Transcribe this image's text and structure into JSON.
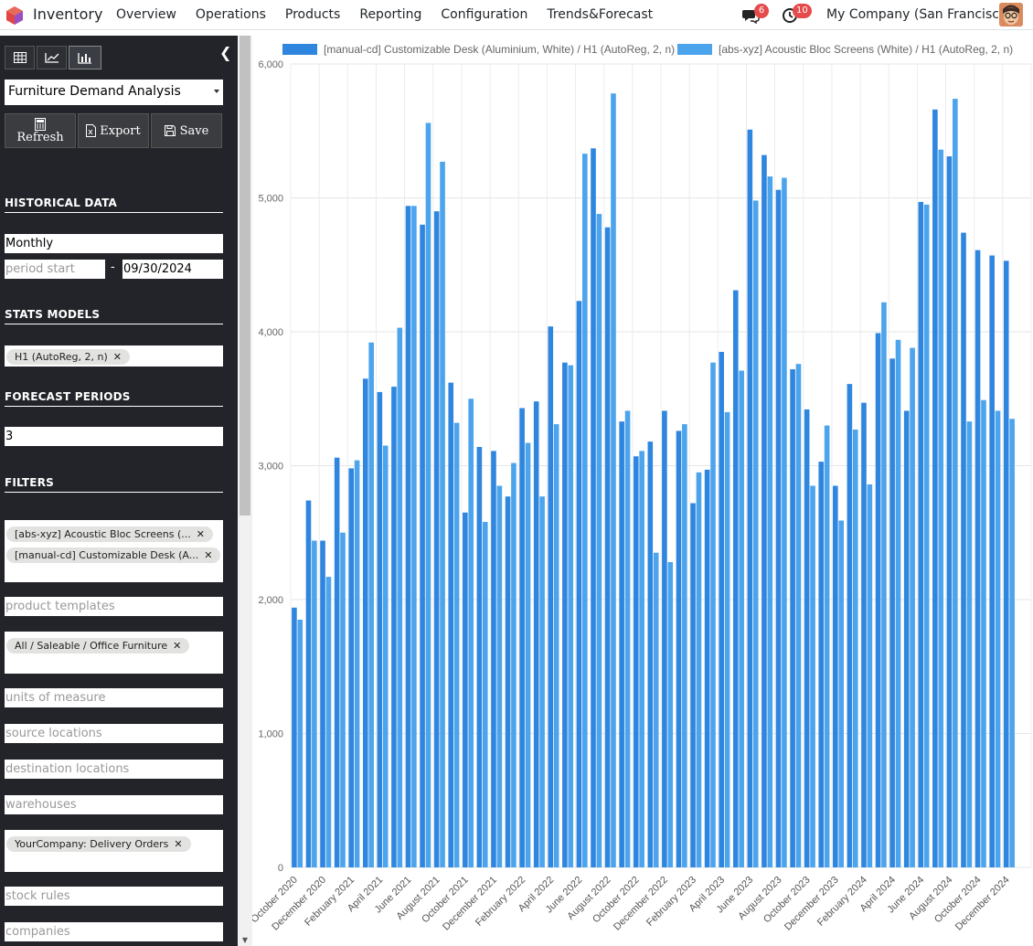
{
  "app": {
    "name": "Inventory"
  },
  "menu": [
    "Overview",
    "Operations",
    "Products",
    "Reporting",
    "Configuration",
    "Trends&Forecast"
  ],
  "systray": {
    "messages_count": "6",
    "activities_count": "10",
    "company": "My Company (San Francisco)"
  },
  "sidebar": {
    "report_select": "Furniture Demand Analysis",
    "actions": {
      "refresh": "Refresh",
      "export": "Export",
      "save": "Save"
    },
    "historical_title": "HISTORICAL DATA",
    "period": "Monthly",
    "period_start_placeholder": "period start",
    "period_separator": "-",
    "period_end": "09/30/2024",
    "stats_title": "STATS MODELS",
    "stats_tag": "H1 (AutoReg, 2, n)",
    "forecast_title": "FORECAST PERIODS",
    "forecast_value": "3",
    "filters_title": "FILTERS",
    "product_tags": [
      "[abs-xyz] Acoustic Bloc Screens (...",
      "[manual-cd] Customizable Desk (A..."
    ],
    "product_templates_placeholder": "product templates",
    "category_tag": "All / Saleable / Office Furniture",
    "uom_placeholder": "units of measure",
    "source_placeholder": "source locations",
    "destination_placeholder": "destination locations",
    "warehouses_placeholder": "warehouses",
    "picking_tag": "YourCompany: Delivery Orders",
    "stock_rules_placeholder": "stock rules",
    "companies_placeholder": "companies"
  },
  "chart_data": {
    "type": "bar",
    "legend_position": "top",
    "grid": true,
    "ylim": [
      0,
      6000
    ],
    "y_ticks": [
      "0",
      "1,000",
      "2,000",
      "3,000",
      "4,000",
      "5,000",
      "6,000"
    ],
    "categories": [
      "October 2020",
      "November 2020",
      "December 2020",
      "January 2021",
      "February 2021",
      "March 2021",
      "April 2021",
      "May 2021",
      "June 2021",
      "July 2021",
      "August 2021",
      "September 2021",
      "October 2021",
      "November 2021",
      "December 2021",
      "January 2022",
      "February 2022",
      "March 2022",
      "April 2022",
      "May 2022",
      "June 2022",
      "July 2022",
      "August 2022",
      "September 2022",
      "October 2022",
      "November 2022",
      "December 2022",
      "January 2023",
      "February 2023",
      "March 2023",
      "April 2023",
      "May 2023",
      "June 2023",
      "July 2023",
      "August 2023",
      "September 2023",
      "October 2023",
      "November 2023",
      "December 2023",
      "January 2024",
      "February 2024",
      "March 2024",
      "April 2024",
      "May 2024",
      "June 2024",
      "July 2024",
      "August 2024",
      "September 2024",
      "October 2024",
      "November 2024",
      "December 2024",
      "January 2025"
    ],
    "x_tick_labels": [
      "October 2020",
      "December 2020",
      "February 2021",
      "April 2021",
      "June 2021",
      "August 2021",
      "October 2021",
      "December 2021",
      "February 2022",
      "April 2022",
      "June 2022",
      "August 2022",
      "October 2022",
      "December 2022",
      "February 2023",
      "April 2023",
      "June 2023",
      "August 2023",
      "October 2023",
      "December 2023",
      "February 2024",
      "April 2024",
      "June 2024",
      "August 2024",
      "October 2024",
      "December 2024"
    ],
    "series": [
      {
        "name": "[manual-cd] Customizable Desk (Aluminium, White) / H1 (AutoReg, 2, n)",
        "color": "#2f86df",
        "values": [
          1940,
          2740,
          2440,
          3060,
          2980,
          3650,
          3550,
          3590,
          4940,
          4800,
          4900,
          3620,
          2650,
          3140,
          3110,
          2770,
          3430,
          3480,
          4040,
          3770,
          4230,
          5370,
          4780,
          3330,
          3070,
          3180,
          3410,
          3260,
          2720,
          2970,
          3850,
          4310,
          5510,
          5320,
          5060,
          3720,
          3420,
          3030,
          2850,
          3610,
          3470,
          3990,
          3800,
          3410,
          4970,
          5660,
          5310,
          4740,
          4610,
          4570,
          4530,
          null
        ]
      },
      {
        "name": "[abs-xyz] Acoustic Bloc Screens (White) / H1 (AutoReg, 2, n)",
        "color": "#4ca4ec",
        "values": [
          1850,
          2440,
          2170,
          2500,
          3040,
          3920,
          3150,
          4030,
          4940,
          5560,
          5270,
          3320,
          3500,
          2580,
          2850,
          3020,
          3170,
          2770,
          3310,
          3750,
          5330,
          4880,
          5780,
          3410,
          3110,
          2350,
          2280,
          3310,
          2950,
          3770,
          3400,
          3710,
          4980,
          5160,
          5150,
          3760,
          2850,
          3300,
          2590,
          3270,
          2860,
          4220,
          3940,
          3880,
          4950,
          5360,
          5740,
          3330,
          3490,
          3410,
          3350,
          null
        ]
      }
    ]
  }
}
